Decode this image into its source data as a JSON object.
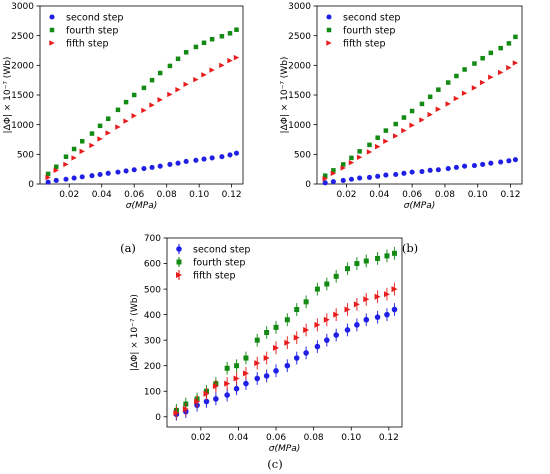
{
  "captions": [
    "(a)",
    "(b)",
    "(c)"
  ],
  "colors": {
    "second step": "#1f1fe6",
    "fourth step": "#138a13",
    "fifth step": "#e81c1c"
  },
  "chart_data": [
    {
      "type": "scatter",
      "ylabel": "|ΔΦ| × 10⁻⁷ (Wb)",
      "xlabel": "σ(MPa)",
      "xlim": [
        0.002,
        0.127
      ],
      "ylim": [
        0,
        3000
      ],
      "xticks": [
        0.02,
        0.04,
        0.06,
        0.08,
        0.1,
        0.12
      ],
      "xticklabels": [
        "0.02",
        "0.04",
        "0.06",
        "0.08",
        "0.10",
        "0.12"
      ],
      "yticks": [
        0,
        500,
        1000,
        1500,
        2000,
        2500,
        3000
      ],
      "yticklabels": [
        "0",
        "500",
        "1000",
        "1500",
        "2000",
        "2500",
        "3000"
      ],
      "grid": false,
      "legend": "top-left",
      "x": [
        0.007,
        0.012,
        0.018,
        0.023,
        0.028,
        0.034,
        0.039,
        0.044,
        0.05,
        0.055,
        0.06,
        0.066,
        0.071,
        0.076,
        0.082,
        0.087,
        0.092,
        0.098,
        0.103,
        0.108,
        0.114,
        0.119,
        0.123
      ],
      "series": [
        {
          "name": "second step",
          "marker": "circle",
          "values": [
            30,
            60,
            80,
            100,
            120,
            140,
            160,
            180,
            200,
            220,
            240,
            260,
            280,
            300,
            330,
            350,
            380,
            400,
            420,
            440,
            460,
            490,
            520
          ]
        },
        {
          "name": "fourth step",
          "marker": "square",
          "values": [
            170,
            290,
            460,
            590,
            720,
            850,
            980,
            1100,
            1250,
            1380,
            1500,
            1620,
            1750,
            1870,
            1990,
            2110,
            2220,
            2310,
            2380,
            2440,
            2490,
            2540,
            2600
          ]
        },
        {
          "name": "fifth step",
          "marker": "triangle",
          "values": [
            110,
            230,
            330,
            440,
            550,
            650,
            760,
            860,
            960,
            1060,
            1150,
            1240,
            1330,
            1420,
            1510,
            1590,
            1680,
            1760,
            1840,
            1920,
            2000,
            2080,
            2130
          ]
        }
      ]
    },
    {
      "type": "scatter",
      "ylabel": "|ΔΦ| × 10⁻⁷ (Wb)",
      "xlabel": "σ(MPa)",
      "xlim": [
        0.002,
        0.127
      ],
      "ylim": [
        0,
        3000
      ],
      "xticks": [
        0.02,
        0.04,
        0.06,
        0.08,
        0.1,
        0.12
      ],
      "xticklabels": [
        "0.02",
        "0.04",
        "0.06",
        "0.08",
        "0.10",
        "0.12"
      ],
      "yticks": [
        0,
        500,
        1000,
        1500,
        2000,
        2500,
        3000
      ],
      "yticklabels": [
        "0",
        "500",
        "1000",
        "1500",
        "2000",
        "2500",
        "3000"
      ],
      "grid": false,
      "legend": "top-left",
      "x": [
        0.007,
        0.012,
        0.018,
        0.023,
        0.028,
        0.034,
        0.039,
        0.044,
        0.05,
        0.055,
        0.06,
        0.066,
        0.071,
        0.076,
        0.082,
        0.087,
        0.092,
        0.098,
        0.103,
        0.108,
        0.114,
        0.119,
        0.123
      ],
      "series": [
        {
          "name": "second step",
          "marker": "circle",
          "values": [
            20,
            40,
            60,
            80,
            100,
            110,
            130,
            150,
            160,
            180,
            200,
            210,
            230,
            240,
            260,
            280,
            300,
            310,
            330,
            350,
            370,
            390,
            410
          ]
        },
        {
          "name": "fourth step",
          "marker": "square",
          "values": [
            140,
            230,
            330,
            440,
            550,
            660,
            780,
            900,
            1010,
            1120,
            1230,
            1350,
            1470,
            1590,
            1710,
            1820,
            1930,
            2030,
            2120,
            2210,
            2290,
            2370,
            2480
          ]
        },
        {
          "name": "fifth step",
          "marker": "triangle",
          "values": [
            90,
            180,
            270,
            360,
            450,
            540,
            630,
            720,
            810,
            900,
            990,
            1080,
            1170,
            1260,
            1350,
            1440,
            1530,
            1620,
            1710,
            1800,
            1880,
            1960,
            2040
          ]
        }
      ]
    },
    {
      "type": "scatter",
      "ylabel": "|ΔΦ| × 10⁻⁷ (Wb)",
      "xlabel": "σ(MPa)",
      "xlim": [
        0.002,
        0.127
      ],
      "ylim": [
        -40,
        700
      ],
      "xticks": [
        0.02,
        0.04,
        0.06,
        0.08,
        0.1,
        0.12
      ],
      "xticklabels": [
        "0.02",
        "0.04",
        "0.06",
        "0.08",
        "0.10",
        "0.12"
      ],
      "yticks": [
        0,
        100,
        200,
        300,
        400,
        500,
        600,
        700
      ],
      "yticklabels": [
        "0",
        "100",
        "200",
        "300",
        "400",
        "500",
        "600",
        "700"
      ],
      "grid": false,
      "legend": "top-left",
      "x": [
        0.007,
        0.012,
        0.018,
        0.023,
        0.028,
        0.034,
        0.039,
        0.044,
        0.05,
        0.055,
        0.06,
        0.066,
        0.071,
        0.076,
        0.082,
        0.087,
        0.092,
        0.098,
        0.103,
        0.108,
        0.114,
        0.119,
        0.123
      ],
      "series": [
        {
          "name": "second step",
          "marker": "circle",
          "values": [
            10,
            20,
            45,
            60,
            70,
            85,
            110,
            130,
            150,
            160,
            180,
            200,
            230,
            250,
            275,
            300,
            320,
            340,
            360,
            380,
            390,
            400,
            420
          ],
          "yerr": 25
        },
        {
          "name": "fourth step",
          "marker": "square",
          "values": [
            25,
            50,
            70,
            100,
            130,
            190,
            200,
            230,
            300,
            330,
            350,
            380,
            420,
            450,
            500,
            520,
            550,
            580,
            600,
            610,
            620,
            630,
            640
          ],
          "yerr": 25
        },
        {
          "name": "fifth step",
          "marker": "triangle",
          "values": [
            15,
            30,
            60,
            90,
            120,
            130,
            150,
            170,
            210,
            230,
            270,
            290,
            310,
            340,
            360,
            380,
            400,
            420,
            440,
            460,
            470,
            480,
            500
          ],
          "yerr": 25
        }
      ]
    }
  ]
}
